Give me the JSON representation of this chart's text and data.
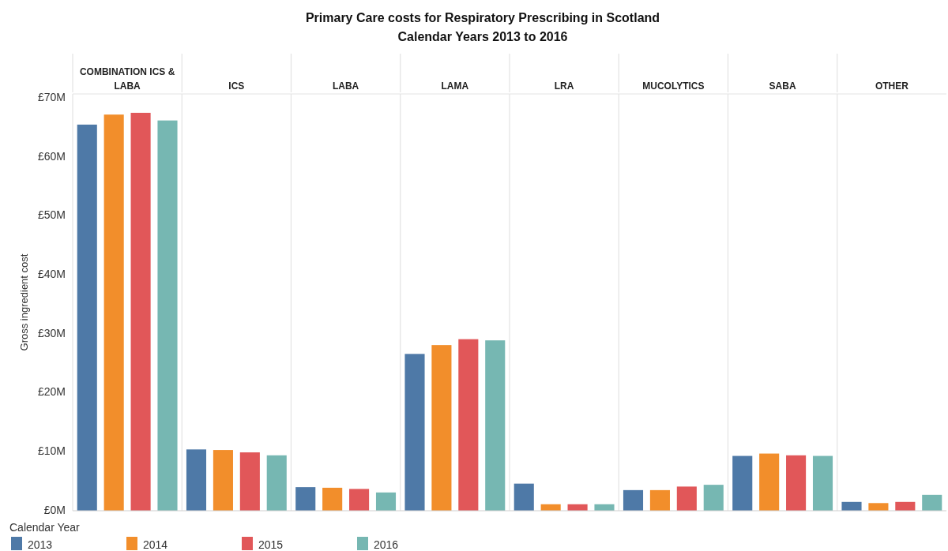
{
  "chart_data": {
    "type": "bar",
    "title": "Primary Care costs for Respiratory Prescribing in Scotland",
    "subtitle": "Calendar Years 2013 to 2016",
    "ylabel": "Gross ingredient cost",
    "legend_title": "Calendar Year",
    "legend": "bottom",
    "categories": [
      "COMBINATION ICS & LABA",
      "ICS",
      "LABA",
      "LAMA",
      "LRA",
      "MUCOLYTICS",
      "SABA",
      "OTHER"
    ],
    "series": [
      {
        "name": "2013",
        "color": "#4e79a7",
        "values": [
          65.5,
          10.4,
          4.0,
          26.6,
          4.6,
          3.5,
          9.3,
          1.5
        ]
      },
      {
        "name": "2014",
        "color": "#f28e2b",
        "values": [
          67.2,
          10.3,
          3.9,
          28.1,
          1.1,
          3.5,
          9.7,
          1.3
        ]
      },
      {
        "name": "2015",
        "color": "#e15759",
        "values": [
          67.5,
          9.9,
          3.7,
          29.1,
          1.1,
          4.1,
          9.4,
          1.5
        ]
      },
      {
        "name": "2016",
        "color": "#76b7b2",
        "values": [
          66.2,
          9.4,
          3.1,
          28.9,
          1.1,
          4.4,
          9.3,
          2.7
        ]
      }
    ],
    "ylim": [
      0,
      70.7
    ],
    "yticks": [
      {
        "value": 0,
        "label": "£0M"
      },
      {
        "value": 10,
        "label": "£10M"
      },
      {
        "value": 20,
        "label": "£20M"
      },
      {
        "value": 30,
        "label": "£30M"
      },
      {
        "value": 40,
        "label": "£40M"
      },
      {
        "value": 50,
        "label": "£50M"
      },
      {
        "value": 60,
        "label": "£60M"
      },
      {
        "value": 70,
        "label": "£70M"
      }
    ]
  }
}
